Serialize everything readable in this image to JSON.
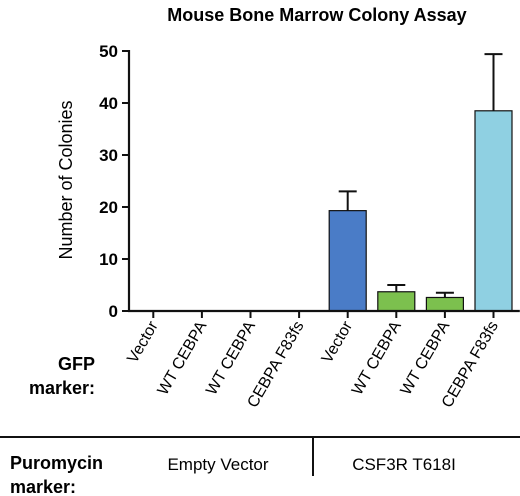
{
  "chart_data": {
    "type": "bar",
    "title": "Mouse Bone Marrow Colony Assay",
    "ylabel": "Number of Colonies",
    "ylim": [
      0,
      50
    ],
    "yticks": [
      "0",
      "10",
      "20",
      "30",
      "40",
      "50"
    ],
    "categories": [
      "Vector",
      "WT CEBPA",
      "WT CEBPA",
      "CEBPA F83fs",
      "Vector",
      "WT CEBPA",
      "WT CEBPA",
      "CEBPA F83fs"
    ],
    "values": [
      0,
      0,
      0,
      0,
      19.3,
      3.7,
      2.6,
      38.5
    ],
    "errors": [
      0,
      0,
      0,
      0,
      3.7,
      1.3,
      0.9,
      10.9
    ],
    "bar_colors": [
      "#4a7cc7",
      "#4a7cc7",
      "#4a7cc7",
      "#4a7cc7",
      "#4a7cc7",
      "#7cc04e",
      "#7cc04e",
      "#8fd0e2"
    ],
    "row_labels": {
      "gfp_line1": "GFP",
      "gfp_line2": "marker:",
      "puro_line1": "Puromycin",
      "puro_line2": "marker:"
    },
    "groups": [
      "Empty Vector",
      "CSF3R T618I"
    ]
  }
}
